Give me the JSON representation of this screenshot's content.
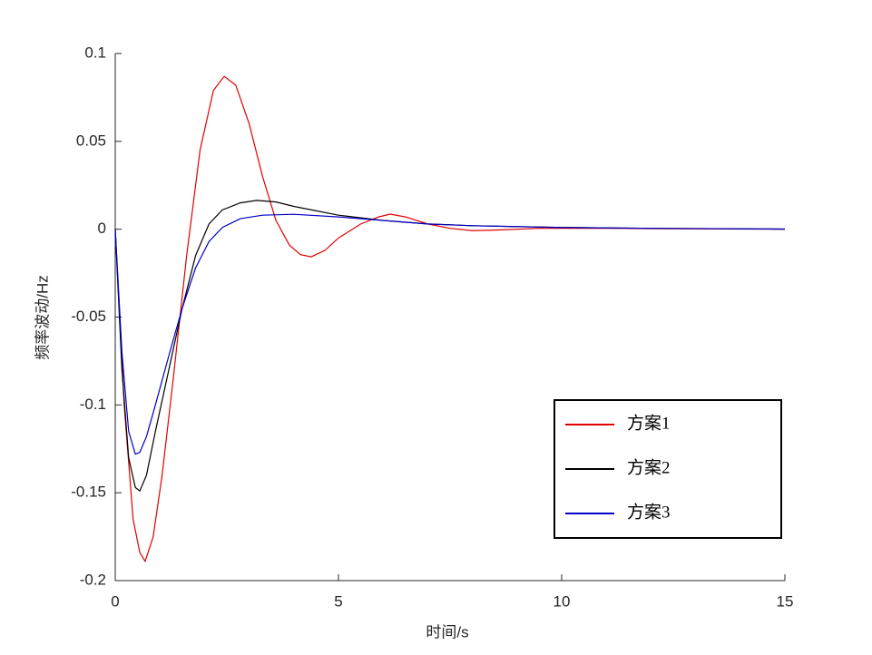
{
  "chart_data": {
    "type": "line",
    "xlabel": "时间/s",
    "ylabel": "频率波动/Hz",
    "xlim": [
      0,
      15
    ],
    "ylim": [
      -0.2,
      0.1
    ],
    "xticks": [
      0,
      5,
      10,
      15
    ],
    "yticks": [
      -0.2,
      -0.15,
      -0.1,
      -0.05,
      0,
      0.05,
      0.1
    ],
    "grid": false,
    "legend_position": "lower-right",
    "series": [
      {
        "name": "方案1",
        "color": "#e00000",
        "x": [
          0,
          0.2,
          0.4,
          0.55,
          0.67,
          0.85,
          1.05,
          1.3,
          1.6,
          1.9,
          2.2,
          2.44,
          2.7,
          3.0,
          3.3,
          3.6,
          3.9,
          4.15,
          4.39,
          4.7,
          5.0,
          5.5,
          5.9,
          6.16,
          6.5,
          7.0,
          7.5,
          8.0,
          8.5,
          9.5,
          11,
          13,
          15
        ],
        "values": [
          0,
          -0.1,
          -0.165,
          -0.184,
          -0.189,
          -0.175,
          -0.14,
          -0.085,
          -0.015,
          0.045,
          0.079,
          0.087,
          0.082,
          0.06,
          0.03,
          0.005,
          -0.009,
          -0.0145,
          -0.0157,
          -0.012,
          -0.005,
          0.003,
          0.007,
          0.0086,
          0.007,
          0.003,
          0.0005,
          -0.0008,
          -0.0005,
          0.0005,
          0.0005,
          0.0002,
          0
        ]
      },
      {
        "name": "方案2",
        "color": "#000000",
        "x": [
          0,
          0.15,
          0.3,
          0.45,
          0.55,
          0.7,
          0.9,
          1.2,
          1.5,
          1.8,
          2.1,
          2.4,
          2.8,
          3.17,
          3.6,
          4.0,
          5,
          6,
          7,
          8,
          10,
          12,
          15
        ],
        "values": [
          0,
          -0.08,
          -0.13,
          -0.147,
          -0.149,
          -0.14,
          -0.115,
          -0.08,
          -0.045,
          -0.015,
          0.003,
          0.011,
          0.015,
          0.0164,
          0.0155,
          0.013,
          0.008,
          0.005,
          0.003,
          0.002,
          0.001,
          0.0005,
          0.0001
        ]
      },
      {
        "name": "方案3",
        "color": "#0000c8",
        "x": [
          0,
          0.15,
          0.3,
          0.45,
          0.55,
          0.7,
          0.9,
          1.2,
          1.5,
          1.8,
          2.1,
          2.4,
          2.8,
          3.3,
          4.0,
          5,
          6,
          7,
          8,
          10,
          12,
          15
        ],
        "values": [
          0,
          -0.07,
          -0.115,
          -0.128,
          -0.127,
          -0.118,
          -0.1,
          -0.072,
          -0.045,
          -0.022,
          -0.007,
          0.001,
          0.006,
          0.008,
          0.0085,
          0.007,
          0.005,
          0.003,
          0.002,
          0.001,
          0.0005,
          0.0001
        ]
      }
    ]
  }
}
